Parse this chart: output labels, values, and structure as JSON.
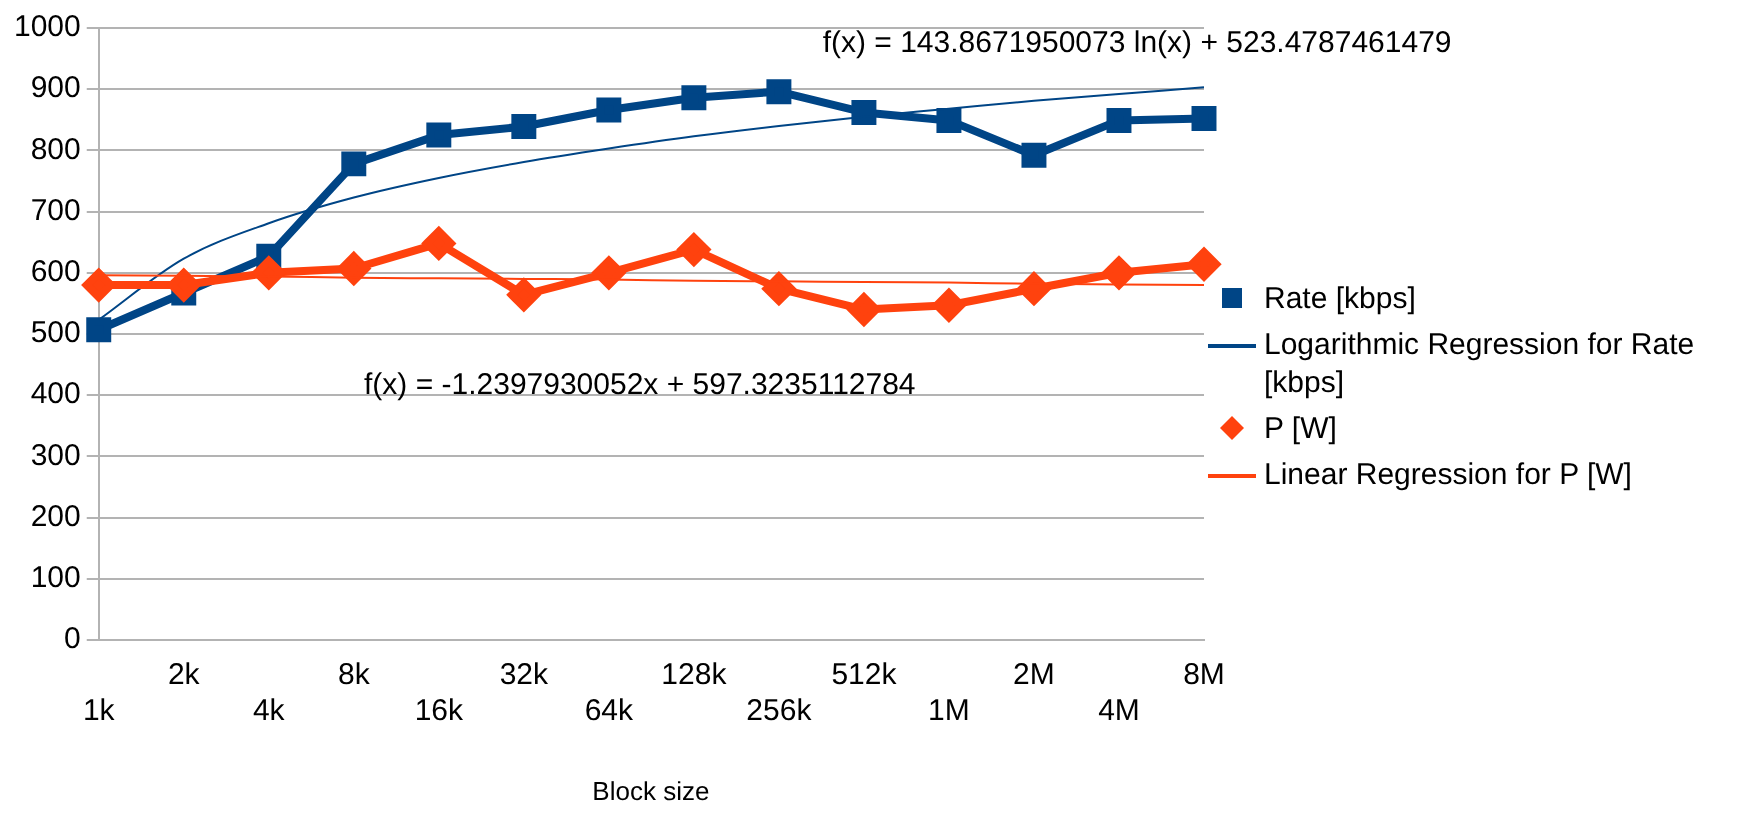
{
  "chart_data": {
    "type": "line",
    "xlabel": "Block size",
    "categories": [
      "1k",
      "2k",
      "4k",
      "8k",
      "16k",
      "32k",
      "64k",
      "128k",
      "256k",
      "512k",
      "1M",
      "2M",
      "4M",
      "8M"
    ],
    "ylim": [
      0,
      1000
    ],
    "yticks": [
      0,
      100,
      200,
      300,
      400,
      500,
      600,
      700,
      800,
      900,
      1000
    ],
    "grid": "y",
    "legend": "right",
    "line_style": "solid",
    "series": [
      {
        "name": "Rate [kbps]",
        "color": "#004586",
        "marker": "square",
        "values": [
          507,
          567,
          627,
          778,
          825,
          839,
          866,
          886,
          896,
          862,
          849,
          792,
          849,
          852
        ]
      },
      {
        "name": "Logarithmic Regression for Rate [kbps]",
        "color": "#004586",
        "marker": "none",
        "values": [
          523,
          623,
          681,
          723,
          755,
          781,
          803,
          823,
          840,
          855,
          868,
          881,
          892,
          903
        ]
      },
      {
        "name": "P [W]",
        "color": "#ff420e",
        "marker": "diamond",
        "values": [
          580,
          580,
          600,
          607,
          648,
          564,
          600,
          638,
          574,
          540,
          547,
          574,
          600,
          614
        ]
      },
      {
        "name": "Linear Regression for P [W]",
        "color": "#ff420e",
        "marker": "none",
        "values": [
          596,
          595,
          594,
          592,
          591,
          590,
          589,
          587,
          586,
          585,
          584,
          582,
          581,
          580
        ]
      }
    ],
    "annotations": [
      "f(x) = 143.8671950073 ln(x) + 523.4787461479",
      "f(x) = -1.2397930052x + 597.3235112784"
    ]
  }
}
